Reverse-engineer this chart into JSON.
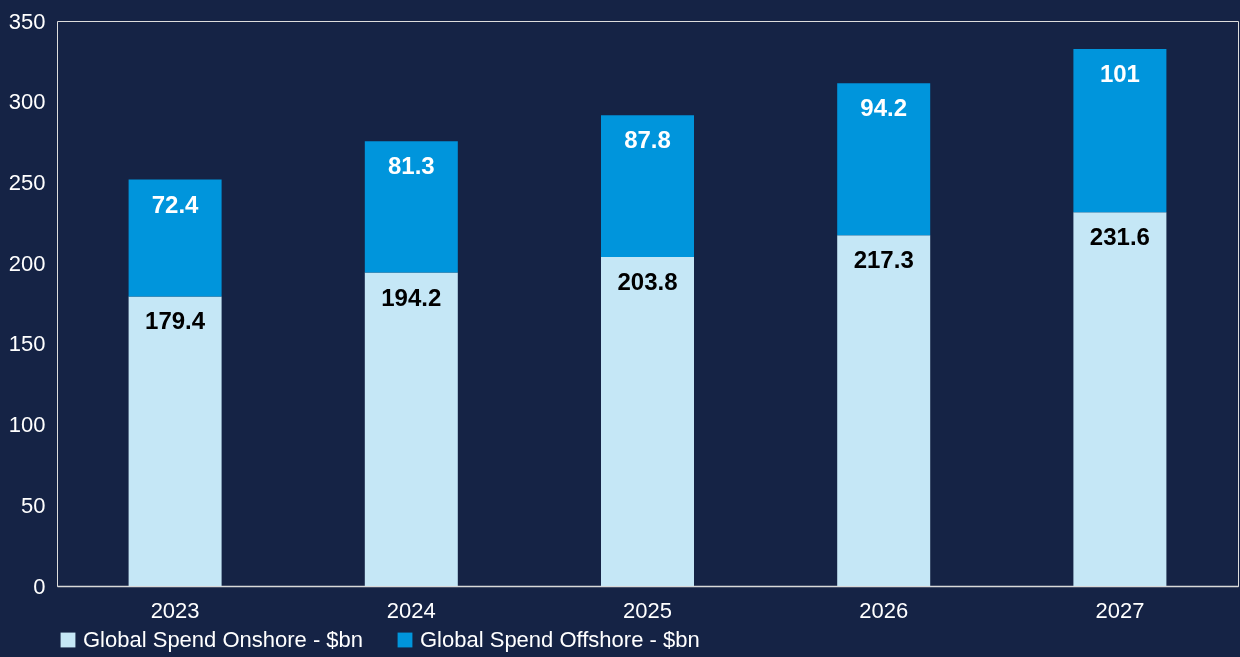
{
  "chart_data": {
    "type": "bar",
    "stacked": true,
    "categories": [
      "2023",
      "2024",
      "2025",
      "2026",
      "2027"
    ],
    "series": [
      {
        "name": "Global Spend Onshore - $bn",
        "color": "#c5e7f6",
        "values": [
          179.4,
          194.2,
          203.8,
          217.3,
          231.6
        ]
      },
      {
        "name": "Global Spend Offshore - $bn",
        "color": "#0095dc",
        "values": [
          72.4,
          81.3,
          87.8,
          94.2,
          101
        ]
      }
    ],
    "ylim": [
      0,
      350
    ],
    "yticks": [
      0,
      50,
      100,
      150,
      200,
      250,
      300,
      350
    ],
    "grid": false,
    "legend": "bottom",
    "data_labels": true
  }
}
